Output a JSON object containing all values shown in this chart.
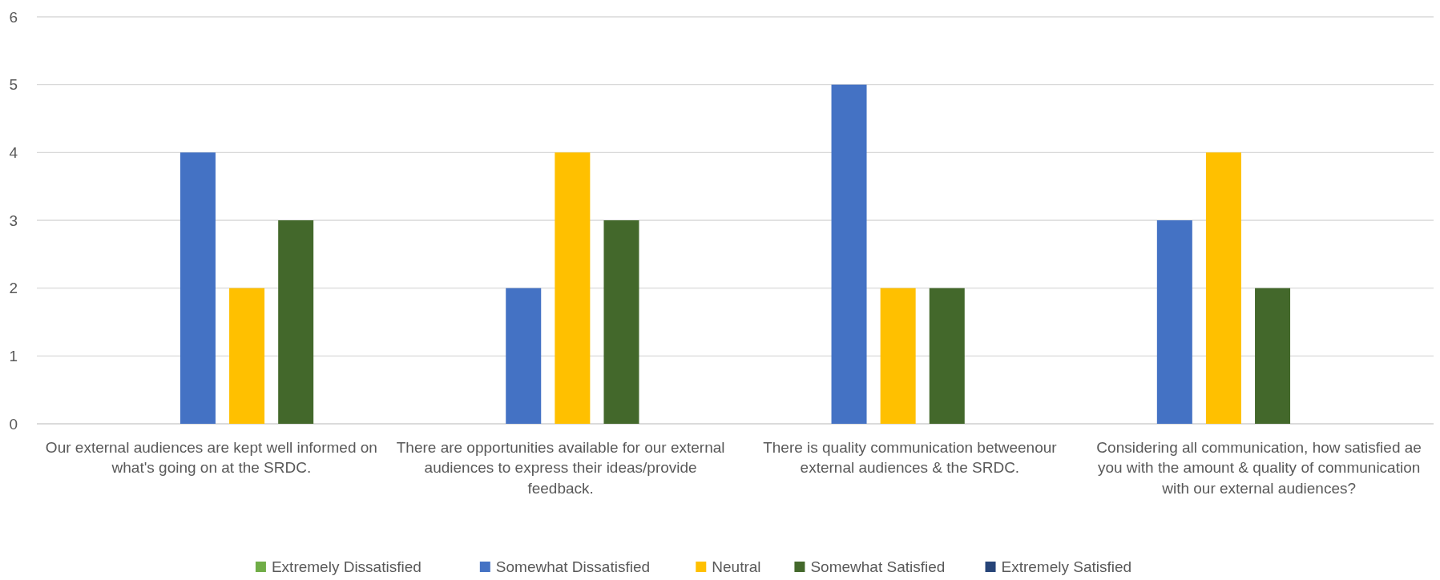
{
  "chart_data": {
    "type": "bar",
    "categories": [
      "Our external audiences are kept well informed on what's going on at the SRDC.",
      "There are opportunities available for our external audiences to express their ideas/provide feedback.",
      "There is quality communication betweenour external audiences & the SRDC.",
      "Considering all communication, how satisfied ae you with the amount & quality of communication with our external audiences?"
    ],
    "series": [
      {
        "name": "Extremely Dissatisfied",
        "color": "#70ad47",
        "values": [
          0,
          0,
          0,
          0
        ]
      },
      {
        "name": "Somewhat Dissatisfied",
        "color": "#4472c4",
        "values": [
          4,
          2,
          5,
          3
        ]
      },
      {
        "name": "Neutral",
        "color": "#ffc000",
        "values": [
          2,
          4,
          2,
          4
        ]
      },
      {
        "name": "Somewhat Satisfied",
        "color": "#43682b",
        "values": [
          3,
          3,
          2,
          2
        ]
      },
      {
        "name": "Extremely Satisfied",
        "color": "#264478",
        "values": [
          0,
          0,
          0,
          0
        ]
      }
    ],
    "ylim": [
      0,
      6
    ],
    "yticks": [
      0,
      1,
      2,
      3,
      4,
      5,
      6
    ],
    "grid": "y",
    "legend": "bottom"
  }
}
